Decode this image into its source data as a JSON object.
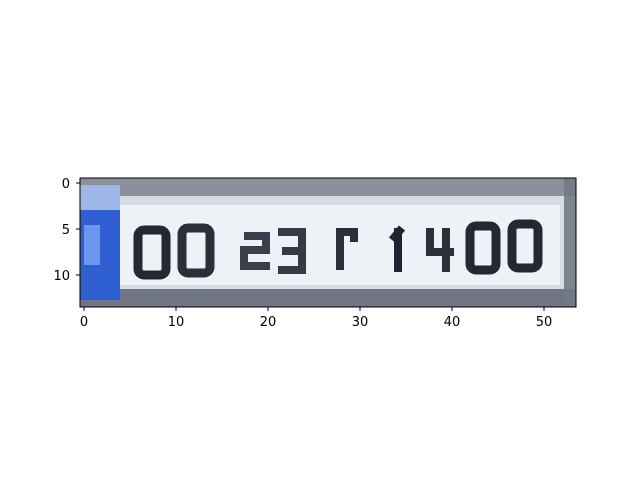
{
  "image": {
    "description_text_on_plate": "00231 1400",
    "plate_characters": [
      "0",
      "0",
      "2",
      "3",
      "1",
      "1",
      "4",
      "0",
      "0"
    ],
    "colors": {
      "plate_bg": "#d9dde4",
      "plate_border_dark": "#4b5261",
      "euro_band": "#2f5fd0",
      "euro_band_light": "#6d97ef",
      "char_color": "#232833",
      "axis_color": "#000000"
    }
  },
  "axes": {
    "x_ticks": [
      "0",
      "10",
      "20",
      "30",
      "40",
      "50"
    ],
    "y_ticks": [
      "0",
      "5",
      "10"
    ]
  }
}
